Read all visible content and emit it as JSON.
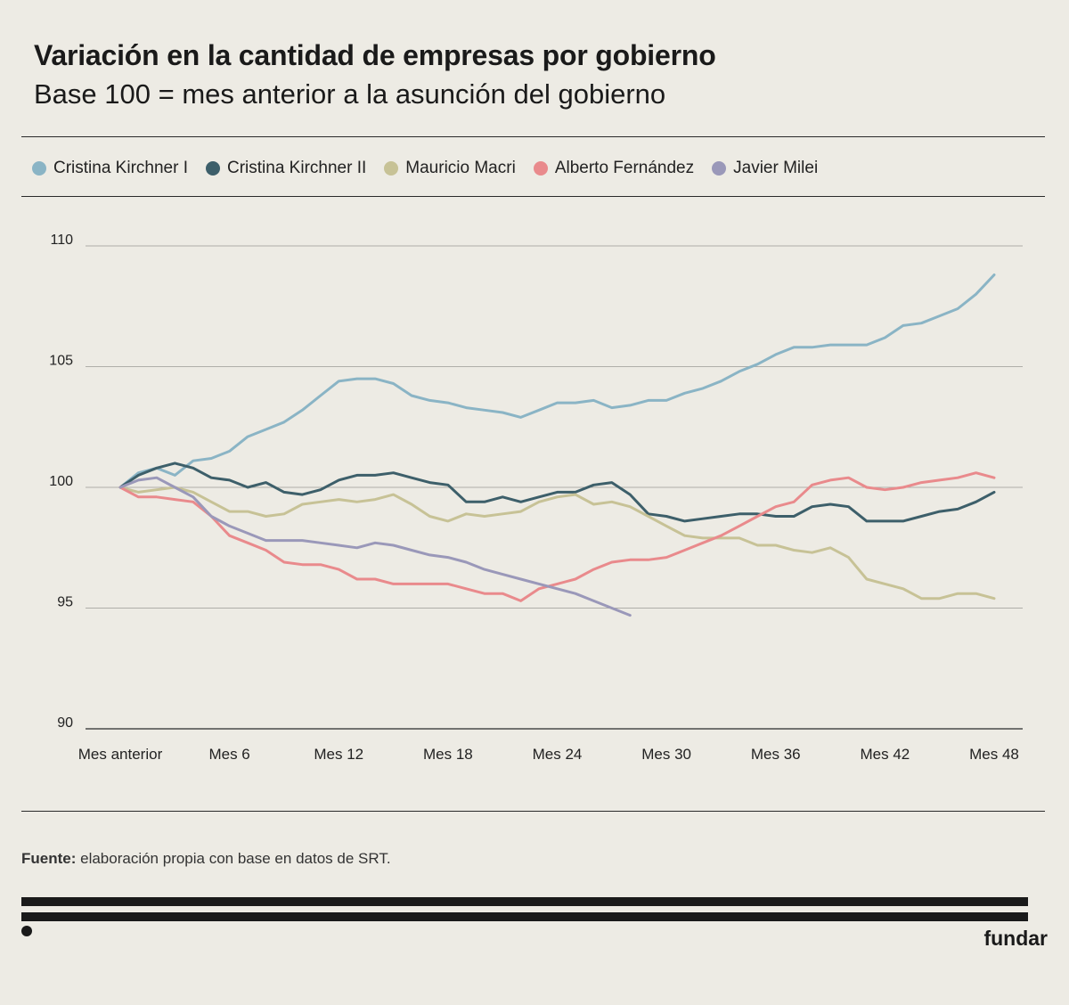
{
  "header": {
    "title": "Variación en la cantidad de empresas por gobierno",
    "subtitle": "Base 100 = mes anterior a la asunción del gobierno"
  },
  "footer": {
    "source_label": "Fuente:",
    "source_text": " elaboración propia con base en datos de SRT.",
    "brand": "fundar"
  },
  "chart_data": {
    "type": "line",
    "title": "Variación en la cantidad de empresas por gobierno",
    "subtitle": "Base 100 = mes anterior a la asunción del gobierno",
    "xlabel": "",
    "ylabel": "",
    "x_ticks": [
      {
        "x": 0,
        "label": "Mes anterior"
      },
      {
        "x": 6,
        "label": "Mes 6"
      },
      {
        "x": 12,
        "label": "Mes 12"
      },
      {
        "x": 18,
        "label": "Mes 18"
      },
      {
        "x": 24,
        "label": "Mes 24"
      },
      {
        "x": 30,
        "label": "Mes 30"
      },
      {
        "x": 36,
        "label": "Mes 36"
      },
      {
        "x": 42,
        "label": "Mes 42"
      },
      {
        "x": 48,
        "label": "Mes 48"
      }
    ],
    "y_ticks": [
      110,
      105,
      100,
      95,
      90
    ],
    "xlim": [
      0,
      48
    ],
    "ylim": [
      90,
      110
    ],
    "grid": "horizontal",
    "legend_position": "top",
    "series": [
      {
        "name": "Cristina Kirchner I",
        "color": "#8ab4c5",
        "values": [
          100,
          100.6,
          100.8,
          100.5,
          101.1,
          101.2,
          101.5,
          102.1,
          102.4,
          102.7,
          103.2,
          103.8,
          104.4,
          104.5,
          104.5,
          104.3,
          103.8,
          103.6,
          103.5,
          103.3,
          103.2,
          103.1,
          102.9,
          103.2,
          103.5,
          103.5,
          103.6,
          103.3,
          103.4,
          103.6,
          103.6,
          103.9,
          104.1,
          104.4,
          104.8,
          105.1,
          105.5,
          105.8,
          105.8,
          105.9,
          105.9,
          105.9,
          106.2,
          106.7,
          106.8,
          107.1,
          107.4,
          108.0,
          108.8
        ]
      },
      {
        "name": "Cristina Kirchner II",
        "color": "#3d5f6a",
        "values": [
          100,
          100.5,
          100.8,
          101.0,
          100.8,
          100.4,
          100.3,
          100.0,
          100.2,
          99.8,
          99.7,
          99.9,
          100.3,
          100.5,
          100.5,
          100.6,
          100.4,
          100.2,
          100.1,
          99.4,
          99.4,
          99.6,
          99.4,
          99.6,
          99.8,
          99.8,
          100.1,
          100.2,
          99.7,
          98.9,
          98.8,
          98.6,
          98.7,
          98.8,
          98.9,
          98.9,
          98.8,
          98.8,
          99.2,
          99.3,
          99.2,
          98.6,
          98.6,
          98.6,
          98.8,
          99.0,
          99.1,
          99.4,
          99.8
        ]
      },
      {
        "name": "Mauricio Macri",
        "color": "#c7c296",
        "values": [
          100,
          99.8,
          99.9,
          100.0,
          99.8,
          99.4,
          99.0,
          99.0,
          98.8,
          98.9,
          99.3,
          99.4,
          99.5,
          99.4,
          99.5,
          99.7,
          99.3,
          98.8,
          98.6,
          98.9,
          98.8,
          98.9,
          99.0,
          99.4,
          99.6,
          99.7,
          99.3,
          99.4,
          99.2,
          98.8,
          98.4,
          98.0,
          97.9,
          97.9,
          97.9,
          97.6,
          97.6,
          97.4,
          97.3,
          97.5,
          97.1,
          96.2,
          96.0,
          95.8,
          95.4,
          95.4,
          95.6,
          95.6,
          95.4
        ]
      },
      {
        "name": "Alberto Fernández",
        "color": "#e98a8c",
        "values": [
          100,
          99.6,
          99.6,
          99.5,
          99.4,
          98.8,
          98.0,
          97.7,
          97.4,
          96.9,
          96.8,
          96.8,
          96.6,
          96.2,
          96.2,
          96.0,
          96.0,
          96.0,
          96.0,
          95.8,
          95.6,
          95.6,
          95.3,
          95.8,
          96.0,
          96.2,
          96.6,
          96.9,
          97.0,
          97.0,
          97.1,
          97.4,
          97.7,
          98.0,
          98.4,
          98.8,
          99.2,
          99.4,
          100.1,
          100.3,
          100.4,
          100.0,
          99.9,
          100.0,
          100.2,
          100.3,
          100.4,
          100.6,
          100.4
        ]
      },
      {
        "name": "Javier Milei",
        "color": "#9a98b9",
        "values": [
          100,
          100.3,
          100.4,
          100.0,
          99.6,
          98.8,
          98.4,
          98.1,
          97.8,
          97.8,
          97.8,
          97.7,
          97.6,
          97.5,
          97.7,
          97.6,
          97.4,
          97.2,
          97.1,
          96.9,
          96.6,
          96.4,
          96.2,
          96.0,
          95.8,
          95.6,
          95.3,
          95.0,
          94.7
        ]
      }
    ]
  }
}
